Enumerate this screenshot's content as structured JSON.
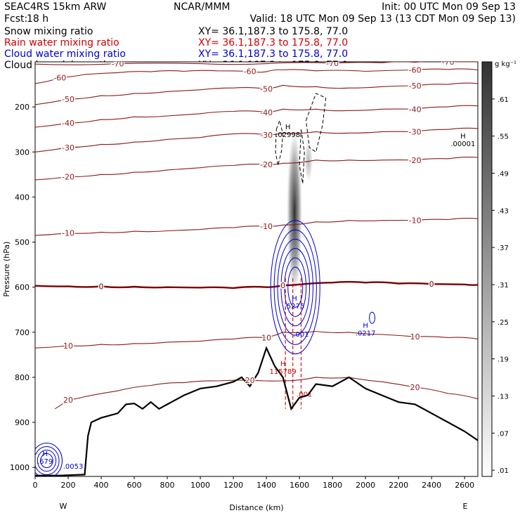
{
  "header": {
    "model": "SEAC4RS 15km ARW",
    "org": "NCAR/MMM",
    "init": "Init: 00 UTC Mon 09 Sep 13",
    "fcst_label": "Fcst:",
    "fcst_value": "18 h",
    "valid": "Valid: 18 UTC Mon 09 Sep 13 (13 CDT Mon 09 Sep 13)",
    "fields": [
      {
        "name": "Snow mixing ratio",
        "color": "#000000",
        "xy": "XY=  36.1,187.3 to 175.8, 77.0",
        "xy_color": "#000000"
      },
      {
        "name": "Rain water mixing ratio",
        "color": "#d00000",
        "xy": "XY=  36.1,187.3 to 175.8, 77.0",
        "xy_color": "#d00000"
      },
      {
        "name": "Cloud water mixing ratio",
        "color": "#0000cc",
        "xy": "XY=  36.1,187.3 to 175.8, 77.0",
        "xy_color": "#0000cc"
      },
      {
        "name": "Cloud ice mixing ratio",
        "color": "#000000",
        "xy": "XY=  36.1,187.3 to 175.8, 77.0",
        "xy_color": "#000000"
      }
    ]
  },
  "colorbar": {
    "unit": "g kg⁻¹",
    "labels": [
      ".61",
      ".55",
      ".49",
      ".43",
      ".37",
      ".31",
      ".25",
      ".19",
      ".13",
      ".07",
      ".01"
    ],
    "values": [
      0.61,
      0.55,
      0.49,
      0.43,
      0.37,
      0.31,
      0.25,
      0.19,
      0.13,
      0.07,
      0.01
    ],
    "range": [
      0,
      0.67
    ]
  },
  "chart_data": {
    "type": "cross-section contour",
    "xlabel": "Distance (km)",
    "ylabel": "Pressure (hPa)",
    "xlim": [
      0,
      2680
    ],
    "ylim": [
      100,
      1020
    ],
    "x_ticks": [
      0,
      200,
      400,
      600,
      800,
      1000,
      1200,
      1400,
      1600,
      1800,
      2000,
      2200,
      2400,
      2600
    ],
    "y_ticks": [
      200,
      300,
      400,
      500,
      600,
      700,
      800,
      900,
      1000
    ],
    "x_end_labels": {
      "left": "W",
      "right": "E"
    },
    "temperature_contours": [
      {
        "value": -70,
        "label": "-70",
        "color": "#8b1a1a",
        "points": [
          [
            0,
            105
          ],
          [
            500,
            104
          ],
          [
            1000,
            104
          ],
          [
            1400,
            104
          ],
          [
            1800,
            103
          ],
          [
            2100,
            102
          ],
          [
            2300,
            101
          ],
          [
            2500,
            100
          ],
          [
            2680,
            100
          ]
        ]
      },
      {
        "value": -60,
        "label": "-60",
        "color": "#8b1a1a",
        "points": [
          [
            0,
            148
          ],
          [
            150,
            135
          ],
          [
            300,
            128
          ],
          [
            500,
            124
          ],
          [
            700,
            122
          ],
          [
            900,
            121
          ],
          [
            1100,
            120
          ],
          [
            1300,
            121
          ],
          [
            1400,
            122
          ],
          [
            1500,
            118
          ],
          [
            1700,
            120
          ],
          [
            2000,
            121
          ],
          [
            2300,
            118
          ],
          [
            2500,
            117
          ],
          [
            2680,
            118
          ]
        ]
      },
      {
        "value": -50,
        "label": "-50",
        "color": "#8b1a1a",
        "points": [
          [
            0,
            195
          ],
          [
            200,
            183
          ],
          [
            400,
            175
          ],
          [
            600,
            170
          ],
          [
            800,
            166
          ],
          [
            1000,
            162
          ],
          [
            1200,
            158
          ],
          [
            1400,
            160
          ],
          [
            1500,
            152
          ],
          [
            1700,
            155
          ],
          [
            1900,
            158
          ],
          [
            2100,
            155
          ],
          [
            2300,
            153
          ],
          [
            2500,
            150
          ],
          [
            2680,
            148
          ]
        ]
      },
      {
        "value": -40,
        "label": "-40",
        "color": "#8b1a1a",
        "points": [
          [
            0,
            245
          ],
          [
            200,
            236
          ],
          [
            400,
            228
          ],
          [
            600,
            222
          ],
          [
            800,
            220
          ],
          [
            1000,
            215
          ],
          [
            1200,
            210
          ],
          [
            1400,
            212
          ],
          [
            1500,
            205
          ],
          [
            1700,
            205
          ],
          [
            1900,
            208
          ],
          [
            2100,
            205
          ],
          [
            2300,
            205
          ],
          [
            2500,
            200
          ],
          [
            2680,
            198
          ]
        ]
      },
      {
        "value": -30,
        "label": "-30",
        "color": "#8b1a1a",
        "points": [
          [
            0,
            300
          ],
          [
            200,
            290
          ],
          [
            400,
            283
          ],
          [
            600,
            278
          ],
          [
            800,
            272
          ],
          [
            1000,
            268
          ],
          [
            1200,
            260
          ],
          [
            1400,
            262
          ],
          [
            1500,
            258
          ],
          [
            1700,
            255
          ],
          [
            1900,
            258
          ],
          [
            2100,
            255
          ],
          [
            2300,
            255
          ],
          [
            2500,
            250
          ],
          [
            2680,
            248
          ]
        ]
      },
      {
        "value": -20,
        "label": "-20",
        "color": "#8b1a1a",
        "points": [
          [
            0,
            362
          ],
          [
            200,
            355
          ],
          [
            400,
            350
          ],
          [
            600,
            345
          ],
          [
            800,
            340
          ],
          [
            1000,
            335
          ],
          [
            1200,
            330
          ],
          [
            1400,
            328
          ],
          [
            1500,
            325
          ],
          [
            1700,
            318
          ],
          [
            1900,
            318
          ],
          [
            2100,
            318
          ],
          [
            2300,
            318
          ],
          [
            2500,
            315
          ],
          [
            2680,
            312
          ]
        ]
      },
      {
        "value": -10,
        "label": "-10",
        "color": "#8b1a1a",
        "points": [
          [
            0,
            485
          ],
          [
            200,
            480
          ],
          [
            400,
            478
          ],
          [
            600,
            476
          ],
          [
            800,
            475
          ],
          [
            1000,
            472
          ],
          [
            1200,
            468
          ],
          [
            1400,
            465
          ],
          [
            1500,
            462
          ],
          [
            1700,
            455
          ],
          [
            1900,
            452
          ],
          [
            2100,
            452
          ],
          [
            2300,
            452
          ],
          [
            2500,
            450
          ],
          [
            2680,
            448
          ]
        ]
      },
      {
        "value": 0,
        "label": "0",
        "color": "#7a0000",
        "bold": true,
        "points": [
          [
            0,
            597
          ],
          [
            200,
            598
          ],
          [
            400,
            598
          ],
          [
            600,
            599
          ],
          [
            800,
            600
          ],
          [
            1000,
            601
          ],
          [
            1200,
            602
          ],
          [
            1400,
            600
          ],
          [
            1500,
            596
          ],
          [
            1600,
            594
          ],
          [
            1800,
            590
          ],
          [
            2000,
            590
          ],
          [
            2200,
            592
          ],
          [
            2400,
            593
          ],
          [
            2600,
            594
          ],
          [
            2680,
            595
          ]
        ]
      },
      {
        "value": 10,
        "label": "10",
        "color": "#8b1a1a",
        "points": [
          [
            0,
            735
          ],
          [
            200,
            730
          ],
          [
            400,
            727
          ],
          [
            600,
            725
          ],
          [
            800,
            722
          ],
          [
            1000,
            720
          ],
          [
            1200,
            715
          ],
          [
            1400,
            712
          ],
          [
            1500,
            700
          ],
          [
            1700,
            698
          ],
          [
            1900,
            700
          ],
          [
            2100,
            705
          ],
          [
            2300,
            710
          ],
          [
            2500,
            712
          ],
          [
            2680,
            715
          ]
        ]
      },
      {
        "value": 20,
        "label": "20",
        "color": "#8b1a1a",
        "points": [
          [
            120,
            870
          ],
          [
            200,
            850
          ],
          [
            300,
            843
          ],
          [
            500,
            830
          ],
          [
            700,
            818
          ],
          [
            900,
            812
          ],
          [
            1100,
            808
          ],
          [
            1300,
            806
          ],
          [
            1500,
            808
          ],
          [
            1700,
            800
          ],
          [
            1900,
            800
          ],
          [
            2100,
            810
          ],
          [
            2300,
            822
          ],
          [
            2500,
            836
          ],
          [
            2680,
            848
          ]
        ]
      }
    ],
    "terrain": [
      [
        0,
        1018
      ],
      [
        150,
        1018
      ],
      [
        300,
        1016
      ],
      [
        320,
        930
      ],
      [
        340,
        900
      ],
      [
        400,
        890
      ],
      [
        500,
        880
      ],
      [
        550,
        860
      ],
      [
        600,
        858
      ],
      [
        650,
        870
      ],
      [
        700,
        855
      ],
      [
        750,
        870
      ],
      [
        800,
        860
      ],
      [
        900,
        840
      ],
      [
        1000,
        825
      ],
      [
        1100,
        820
      ],
      [
        1200,
        810
      ],
      [
        1250,
        800
      ],
      [
        1300,
        820
      ],
      [
        1350,
        790
      ],
      [
        1400,
        735
      ],
      [
        1450,
        775
      ],
      [
        1500,
        800
      ],
      [
        1550,
        870
      ],
      [
        1600,
        845
      ],
      [
        1650,
        840
      ],
      [
        1700,
        815
      ],
      [
        1800,
        820
      ],
      [
        1900,
        800
      ],
      [
        2000,
        825
      ],
      [
        2100,
        840
      ],
      [
        2200,
        855
      ],
      [
        2300,
        860
      ],
      [
        2400,
        880
      ],
      [
        2500,
        900
      ],
      [
        2600,
        920
      ],
      [
        2680,
        940
      ]
    ],
    "cloud_ice_shading": [
      {
        "x_center": 1570,
        "p_top": 250,
        "p_bottom": 620,
        "max_value": 0.61
      }
    ],
    "rain_contours": [
      {
        "value": 0.001,
        "label": ".001",
        "x": 1630,
        "p": 843
      }
    ],
    "extrema_labels": [
      {
        "text": "H\n.02998",
        "color": "#000000",
        "x": 1530,
        "p": 250
      },
      {
        "text": "H\n.00001",
        "color": "#000000",
        "x": 2590,
        "p": 270
      },
      {
        "text": "H\n.5275",
        "color": "#0000cc",
        "x": 1570,
        "p": 630
      },
      {
        "text": "H\n.0217",
        "color": "#0000cc",
        "x": 2000,
        "p": 690
      },
      {
        "text": ".001",
        "color": "#0000cc",
        "x": 1610,
        "p": 710
      },
      {
        "text": "H\n115789",
        "color": "#d00000",
        "x": 1500,
        "p": 775
      },
      {
        "text": "H\n.679",
        "color": "#0000cc",
        "x": 60,
        "p": 975
      },
      {
        "text": ".0053",
        "color": "#0000cc",
        "x": 230,
        "p": 1003
      }
    ]
  }
}
